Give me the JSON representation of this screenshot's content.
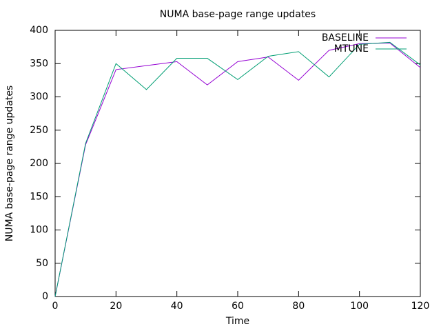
{
  "chart_data": {
    "type": "line",
    "title": "NUMA base-page range updates",
    "x_label": "Time",
    "y_label": "NUMA base-page range updates",
    "x": [
      0,
      10,
      20,
      30,
      40,
      50,
      60,
      70,
      80,
      90,
      100,
      110,
      120
    ],
    "series": [
      {
        "name": "BASELINE",
        "color": "#9400d3",
        "values": [
          0,
          228,
          341,
          347,
          353,
          318,
          353,
          360,
          325,
          370,
          380,
          381,
          344
        ]
      },
      {
        "name": "MTUNE",
        "color": "#009e73",
        "values": [
          0,
          230,
          350,
          311,
          358,
          358,
          326,
          361,
          368,
          330,
          379,
          382,
          348
        ]
      }
    ],
    "xlim": [
      0,
      120
    ],
    "xticks": [
      0,
      20,
      40,
      60,
      80,
      100,
      120
    ],
    "ylim": [
      0,
      400
    ],
    "yticks": [
      0,
      50,
      100,
      150,
      200,
      250,
      300,
      350,
      400
    ],
    "grid": false,
    "legend": "top-right"
  }
}
